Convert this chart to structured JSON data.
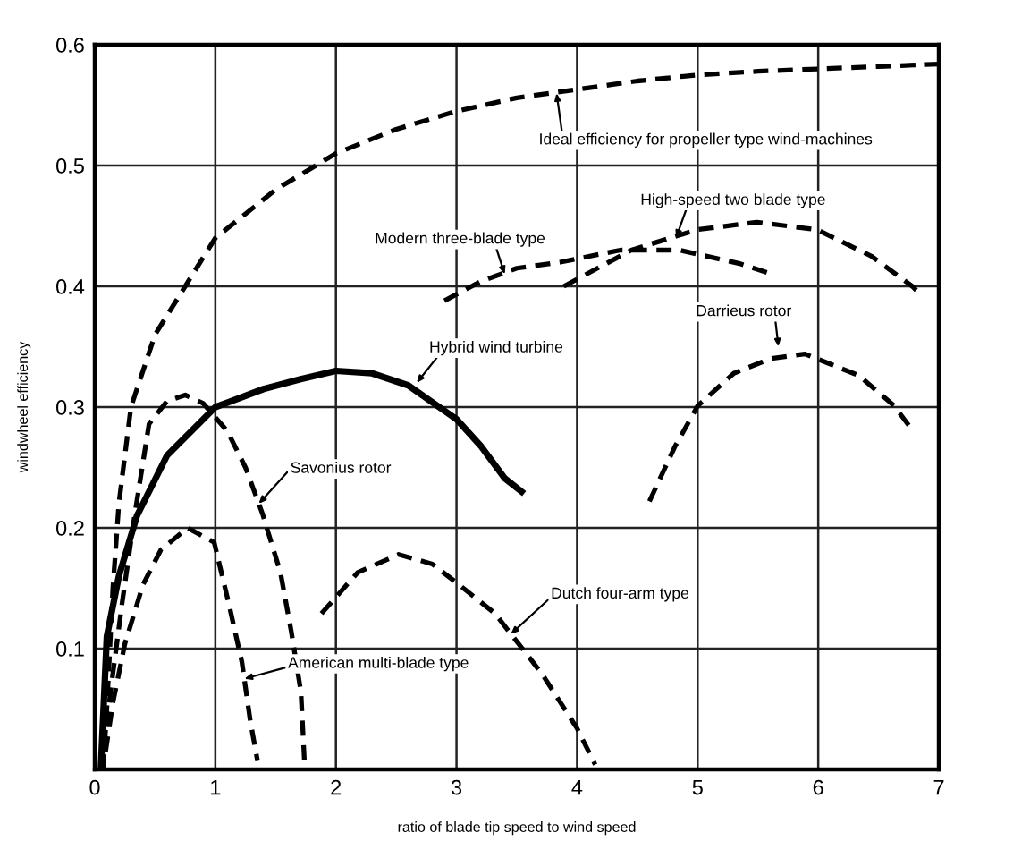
{
  "chart_data": {
    "type": "line",
    "xlabel": "ratio of blade tip speed to wind speed",
    "ylabel": "windwheel efficiency",
    "xlim": [
      0,
      7
    ],
    "ylim": [
      0,
      0.6
    ],
    "xticks": [
      0,
      1,
      2,
      3,
      4,
      5,
      6,
      7
    ],
    "yticks": [
      {
        "value": 0,
        "label": null
      },
      0.1,
      0.2,
      0.3,
      0.4,
      0.5,
      0.6
    ],
    "grid": true,
    "legend": false,
    "marker": "none",
    "series": [
      {
        "color": "#000000",
        "line_style": "dashed",
        "x": [
          0.07,
          0.1,
          0.15,
          0.2,
          0.3,
          0.5,
          0.75,
          1.0,
          1.5,
          2.0,
          2.5,
          3.0,
          3.5,
          4.0,
          4.5,
          5.0,
          5.5,
          6.0,
          6.5,
          7.0
        ],
        "values": [
          0.0,
          0.05,
          0.15,
          0.22,
          0.3,
          0.36,
          0.4,
          0.44,
          0.48,
          0.51,
          0.53,
          0.545,
          0.556,
          0.563,
          0.57,
          0.575,
          0.578,
          0.58,
          0.582,
          0.584
        ]
      },
      {
        "color": "#000000",
        "line_style": "dashed",
        "x": [
          0.08,
          0.13,
          0.23,
          0.33,
          0.45,
          0.6,
          0.75,
          0.9,
          1.1,
          1.25,
          1.39,
          1.54,
          1.63,
          1.71,
          1.74
        ],
        "values": [
          0.015,
          0.064,
          0.14,
          0.21,
          0.286,
          0.305,
          0.31,
          0.303,
          0.28,
          0.25,
          0.212,
          0.163,
          0.114,
          0.064,
          0.004
        ]
      },
      {
        "color": "#000000",
        "line_style": "solid",
        "x": [
          0.05,
          0.1,
          0.2,
          0.35,
          0.6,
          1.0,
          1.4,
          1.7,
          2.0,
          2.3,
          2.6,
          3.0,
          3.2,
          3.4,
          3.54
        ],
        "values": [
          0.0,
          0.11,
          0.16,
          0.21,
          0.26,
          0.3,
          0.315,
          0.323,
          0.33,
          0.328,
          0.318,
          0.29,
          0.268,
          0.241,
          0.23
        ]
      },
      {
        "color": "#000000",
        "line_style": "dashed",
        "x": [
          0.09,
          0.15,
          0.25,
          0.4,
          0.55,
          0.77,
          0.99,
          1.11,
          1.22,
          1.29,
          1.35
        ],
        "values": [
          0.015,
          0.055,
          0.104,
          0.153,
          0.182,
          0.2,
          0.188,
          0.138,
          0.089,
          0.04,
          0.007
        ]
      },
      {
        "color": "#000000",
        "line_style": "dashed",
        "x": [
          1.88,
          2.18,
          2.52,
          2.8,
          3.02,
          3.32,
          3.71,
          4.0,
          4.15
        ],
        "values": [
          0.129,
          0.163,
          0.178,
          0.17,
          0.153,
          0.129,
          0.079,
          0.034,
          0.004
        ]
      },
      {
        "color": "#000000",
        "line_style": "dashed",
        "x": [
          2.9,
          3.2,
          3.5,
          3.86,
          4.36,
          4.85,
          5.34,
          5.62
        ],
        "values": [
          0.388,
          0.404,
          0.415,
          0.42,
          0.43,
          0.43,
          0.419,
          0.41
        ]
      },
      {
        "color": "#000000",
        "line_style": "dashed",
        "x": [
          3.89,
          4.45,
          5.0,
          5.49,
          5.99,
          6.44,
          6.78,
          6.85
        ],
        "values": [
          0.4,
          0.43,
          0.447,
          0.453,
          0.447,
          0.425,
          0.4,
          0.393
        ]
      },
      {
        "color": "#000000",
        "line_style": "dashed",
        "x": [
          4.6,
          4.81,
          5.0,
          5.3,
          5.6,
          5.89,
          6.34,
          6.63,
          6.75
        ],
        "values": [
          0.222,
          0.267,
          0.301,
          0.328,
          0.34,
          0.344,
          0.326,
          0.301,
          0.285
        ]
      }
    ],
    "annotations": [
      {
        "text": "Ideal efficiency for propeller type wind-machines",
        "x": 3.83,
        "y": 0.56
      },
      {
        "text": "High-speed two blade type",
        "x": 4.82,
        "y": 0.44
      },
      {
        "text": "Modern three-blade type",
        "x": 3.4,
        "y": 0.41
      },
      {
        "text": "Darrieus rotor",
        "x": 5.67,
        "y": 0.35
      },
      {
        "text": "Hybrid wind turbine",
        "x": 2.67,
        "y": 0.32
      },
      {
        "text": "Savonius rotor",
        "x": 1.36,
        "y": 0.22
      },
      {
        "text": "Dutch four-arm type",
        "x": 3.45,
        "y": 0.112
      },
      {
        "text": "American multi-blade type",
        "x": 1.24,
        "y": 0.075
      }
    ]
  }
}
